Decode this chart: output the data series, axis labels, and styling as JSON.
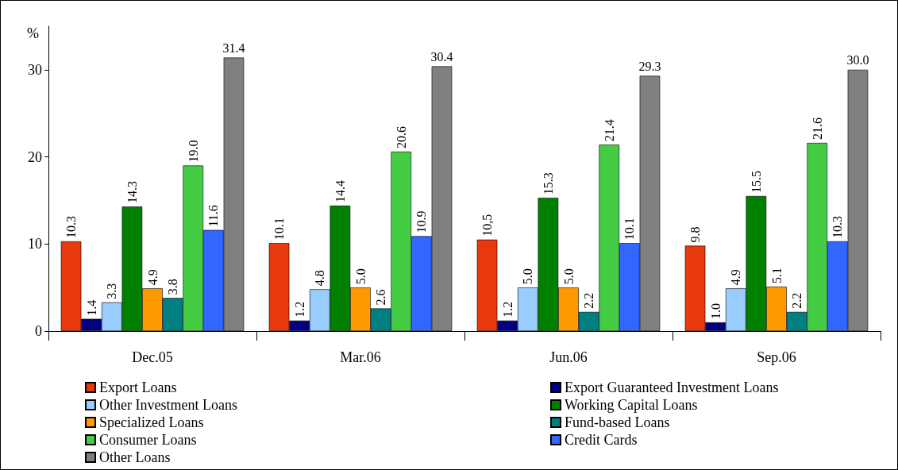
{
  "chart_data": {
    "type": "bar",
    "ylabel": "%",
    "categories": [
      "Dec.05",
      "Mar.06",
      "Jun.06",
      "Sep.06"
    ],
    "ylim": [
      0,
      35
    ],
    "yticks": [
      0,
      10,
      20,
      30
    ],
    "grid": false,
    "legend": "bottom",
    "series": [
      {
        "name": "Export Loans",
        "color": "#e8380d",
        "values": [
          10.3,
          10.1,
          10.5,
          9.8
        ],
        "value_labels": [
          "10.3",
          "10.1",
          "10,5",
          "9.8"
        ]
      },
      {
        "name": "Export Guaranteed Investment Loans",
        "color": "#000080",
        "values": [
          1.4,
          1.2,
          1.2,
          1.0
        ],
        "value_labels": [
          "1.4",
          "1.2",
          "1.2",
          "1.0"
        ]
      },
      {
        "name": "Other Investment Loans",
        "color": "#99ccff",
        "values": [
          3.3,
          4.8,
          5.0,
          4.9
        ],
        "value_labels": [
          "3.3",
          "4.8",
          "5.0",
          "4.9"
        ]
      },
      {
        "name": "Working Capital Loans",
        "color": "#008000",
        "values": [
          14.3,
          14.4,
          15.3,
          15.5
        ],
        "value_labels": [
          "14.3",
          "14.4",
          "15.3",
          "15.5"
        ]
      },
      {
        "name": "Specialized Loans",
        "color": "#ff9900",
        "values": [
          4.9,
          5.0,
          5.0,
          5.1
        ],
        "value_labels": [
          "4.9",
          "5.0",
          "5.0",
          "5.1"
        ]
      },
      {
        "name": "Fund-based Loans",
        "color": "#008080",
        "values": [
          3.8,
          2.6,
          2.2,
          2.2
        ],
        "value_labels": [
          "3.8",
          "2.6",
          "2.2",
          "2.2"
        ]
      },
      {
        "name": "Consumer Loans",
        "color": "#44cc44",
        "values": [
          19.0,
          20.6,
          21.4,
          21.6
        ],
        "value_labels": [
          "19.0",
          "20.6",
          "21.4",
          "21.6"
        ]
      },
      {
        "name": "Credit Cards",
        "color": "#3366ff",
        "values": [
          11.6,
          10.9,
          10.1,
          10.3
        ],
        "value_labels": [
          "11.6",
          "10.9",
          "10.1",
          "10.3"
        ]
      },
      {
        "name": "Other Loans",
        "color": "#808080",
        "values": [
          31.4,
          30.4,
          29.3,
          30.0
        ],
        "value_labels": [
          "31.4",
          "30.4",
          "29.3",
          "30.0"
        ]
      }
    ]
  }
}
